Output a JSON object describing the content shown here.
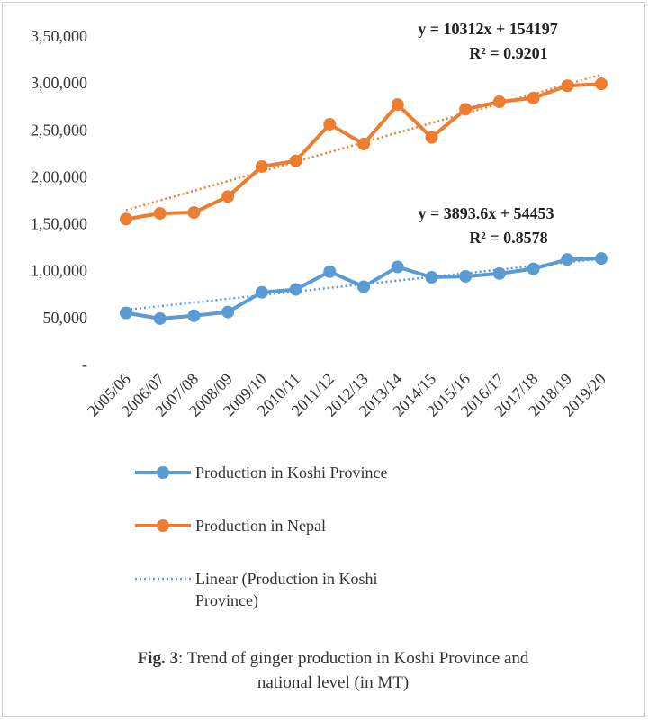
{
  "chart_data": {
    "type": "line",
    "categories": [
      "2005/06",
      "2006/07",
      "2007/08",
      "2008/09",
      "2009/10",
      "2010/11",
      "2011/12",
      "2012/13",
      "2013/14",
      "2014/15",
      "2015/16",
      "2016/17",
      "2017/18",
      "2018/19",
      "2019/20"
    ],
    "series": [
      {
        "name": "Production in Koshi Province",
        "color": "#5b9bd5",
        "style": "solid",
        "values": [
          55000,
          49000,
          52000,
          56000,
          77000,
          80000,
          99000,
          83000,
          104000,
          93000,
          94000,
          97000,
          102000,
          112000,
          113000
        ]
      },
      {
        "name": "Production in Nepal",
        "color": "#ed7d31",
        "style": "solid",
        "values": [
          155000,
          161000,
          162000,
          179000,
          211000,
          217000,
          256000,
          235000,
          277000,
          242000,
          272000,
          280000,
          284000,
          297000,
          299000
        ]
      },
      {
        "name": "Linear (Production in Koshi Province)",
        "color": "#5b9bd5",
        "style": "dotted",
        "values": [
          58347,
          62240,
          66134,
          70027,
          73921,
          77815,
          81708,
          85602,
          89495,
          93389,
          97283,
          101176,
          105070,
          108963,
          112857
        ]
      },
      {
        "color": "#ed7d31",
        "style": "dotted",
        "values": [
          164509,
          174821,
          185133,
          195445,
          205757,
          216069,
          226381,
          236693,
          247005,
          257317,
          267629,
          277941,
          288253,
          298565,
          308877
        ]
      }
    ],
    "ylim": [
      0,
      350000
    ],
    "yticks": [
      {
        "value": 0,
        "label": "-"
      },
      {
        "value": 50000,
        "label": "50,000"
      },
      {
        "value": 100000,
        "label": "1,00,000"
      },
      {
        "value": 150000,
        "label": "1,50,000"
      },
      {
        "value": 200000,
        "label": "2,00,000"
      },
      {
        "value": 250000,
        "label": "2,50,000"
      },
      {
        "value": 300000,
        "label": "3,00,000"
      },
      {
        "value": 350000,
        "label": "3,50,000"
      }
    ],
    "grid": false,
    "annotations": [
      "y = 10312x + 154197",
      "R² = 0.9201",
      "y = 3893.6x + 54453",
      "R² = 0.8578"
    ],
    "caption": {
      "label": "Fig. 3",
      "text": ": Trend of ginger production in Koshi Province and national level (in MT)"
    }
  }
}
